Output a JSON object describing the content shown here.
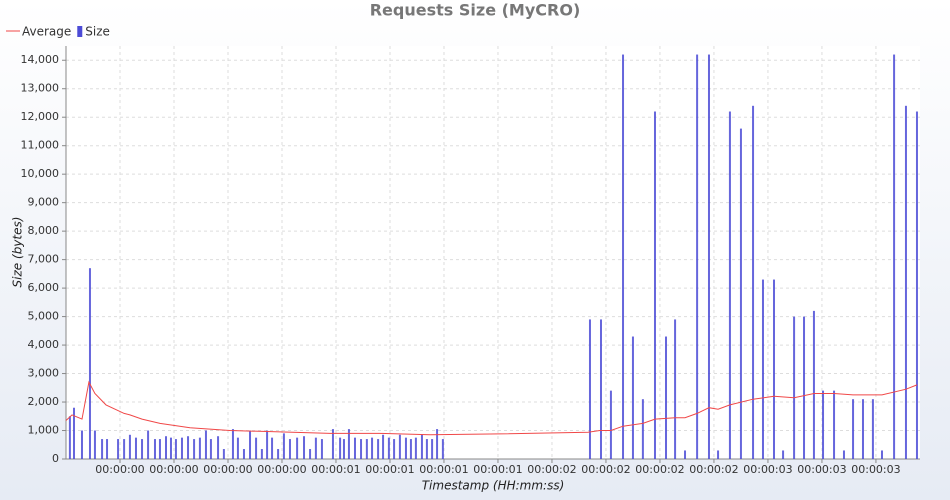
{
  "chart_data": {
    "type": "combo",
    "title": "Requests Size (MyCRO)",
    "x_label": "Timestamp (HH:mm:ss)",
    "y_label": "Size (bytes)",
    "xlim": [
      -250,
      3704
    ],
    "xticks": [
      {
        "value": 0,
        "label": "00:00:00"
      },
      {
        "value": 250,
        "label": "00:00:00"
      },
      {
        "value": 500,
        "label": "00:00:00"
      },
      {
        "value": 750,
        "label": "00:00:00"
      },
      {
        "value": 1000,
        "label": "00:00:01"
      },
      {
        "value": 1250,
        "label": "00:00:01"
      },
      {
        "value": 1500,
        "label": "00:00:01"
      },
      {
        "value": 1750,
        "label": "00:00:01"
      },
      {
        "value": 2000,
        "label": "00:00:02"
      },
      {
        "value": 2250,
        "label": "00:00:02"
      },
      {
        "value": 2500,
        "label": "00:00:02"
      },
      {
        "value": 2750,
        "label": "00:00:02"
      },
      {
        "value": 3000,
        "label": "00:00:03"
      },
      {
        "value": 3250,
        "label": "00:00:03"
      },
      {
        "value": 3500,
        "label": "00:00:03"
      }
    ],
    "ylim": [
      0,
      14500
    ],
    "yticks": [
      0,
      {
        "value": 1000,
        "label": "1,000"
      },
      {
        "value": 2000,
        "label": "2,000"
      },
      {
        "value": 3000,
        "label": "3,000"
      },
      {
        "value": 4000,
        "label": "4,000"
      },
      {
        "value": 5000,
        "label": "5,000"
      },
      {
        "value": 6000,
        "label": "6,000"
      },
      {
        "value": 7000,
        "label": "7,000"
      },
      {
        "value": 8000,
        "label": "8,000"
      },
      {
        "value": 9000,
        "label": "9,000"
      },
      {
        "value": 10000,
        "label": "10,000"
      },
      {
        "value": 11000,
        "label": "11,000"
      },
      {
        "value": 12000,
        "label": "12,000"
      },
      {
        "value": 13000,
        "label": "13,000"
      },
      {
        "value": 14000,
        "label": "14,000"
      }
    ],
    "grid": true,
    "series": [
      {
        "name": "Average",
        "type": "line",
        "color": "#f04848",
        "x": [
          -250,
          -222,
          -176,
          -144,
          -116,
          -65,
          19,
          46,
          102,
          185,
          324,
          509,
          741,
          972,
          1204,
          1435,
          1759,
          2167,
          2222,
          2273,
          2329,
          2421,
          2477,
          2570,
          2616,
          2672,
          2727,
          2769,
          2824,
          2931,
          3028,
          3121,
          3213,
          3306,
          3394,
          3528,
          3639,
          3690
        ],
        "values": [
          1350,
          1550,
          1400,
          2700,
          2300,
          1900,
          1600,
          1550,
          1400,
          1250,
          1100,
          1000,
          950,
          900,
          900,
          850,
          880,
          940,
          1000,
          1000,
          1150,
          1250,
          1400,
          1450,
          1450,
          1600,
          1800,
          1750,
          1900,
          2100,
          2200,
          2150,
          2300,
          2300,
          2250,
          2250,
          2450,
          2600
        ]
      },
      {
        "name": "Size",
        "type": "bar",
        "color": "#4b4bd6",
        "x": [
          -232,
          -213,
          -176,
          -139,
          -116,
          -83,
          -60,
          -9,
          19,
          46,
          74,
          102,
          130,
          162,
          185,
          213,
          236,
          259,
          287,
          315,
          343,
          370,
          398,
          421,
          454,
          481,
          523,
          546,
          574,
          602,
          630,
          657,
          681,
          704,
          732,
          759,
          787,
          820,
          852,
          880,
          907,
          935,
          986,
          1019,
          1037,
          1060,
          1088,
          1116,
          1143,
          1167,
          1195,
          1218,
          1245,
          1269,
          1296,
          1324,
          1347,
          1370,
          1398,
          1421,
          1445,
          1468,
          1495,
          2176,
          2227,
          2273,
          2329,
          2375,
          2421,
          2477,
          2528,
          2570,
          2616,
          2672,
          2727,
          2769,
          2824,
          2875,
          2931,
          2977,
          3028,
          3070,
          3121,
          3167,
          3213,
          3255,
          3306,
          3352,
          3394,
          3440,
          3486,
          3528,
          3584,
          3639,
          3690
        ],
        "values": [
          1500,
          1800,
          1000,
          6700,
          1000,
          700,
          700,
          700,
          700,
          850,
          750,
          700,
          1000,
          700,
          700,
          800,
          750,
          700,
          750,
          800,
          700,
          750,
          1000,
          700,
          800,
          350,
          1050,
          750,
          350,
          1000,
          750,
          350,
          1000,
          750,
          350,
          900,
          700,
          750,
          800,
          350,
          750,
          700,
          1050,
          750,
          700,
          1050,
          750,
          700,
          700,
          750,
          700,
          850,
          750,
          700,
          850,
          750,
          700,
          750,
          850,
          700,
          700,
          1050,
          700,
          4900,
          4900,
          2400,
          14200,
          4300,
          2100,
          12200,
          4300,
          4900,
          300,
          14200,
          14200,
          300,
          12200,
          11600,
          12400,
          6300,
          6300,
          300,
          5000,
          5000,
          5200,
          2400,
          2400,
          300,
          2100,
          2100,
          2100,
          300,
          14200,
          12400,
          12200
        ]
      }
    ]
  }
}
